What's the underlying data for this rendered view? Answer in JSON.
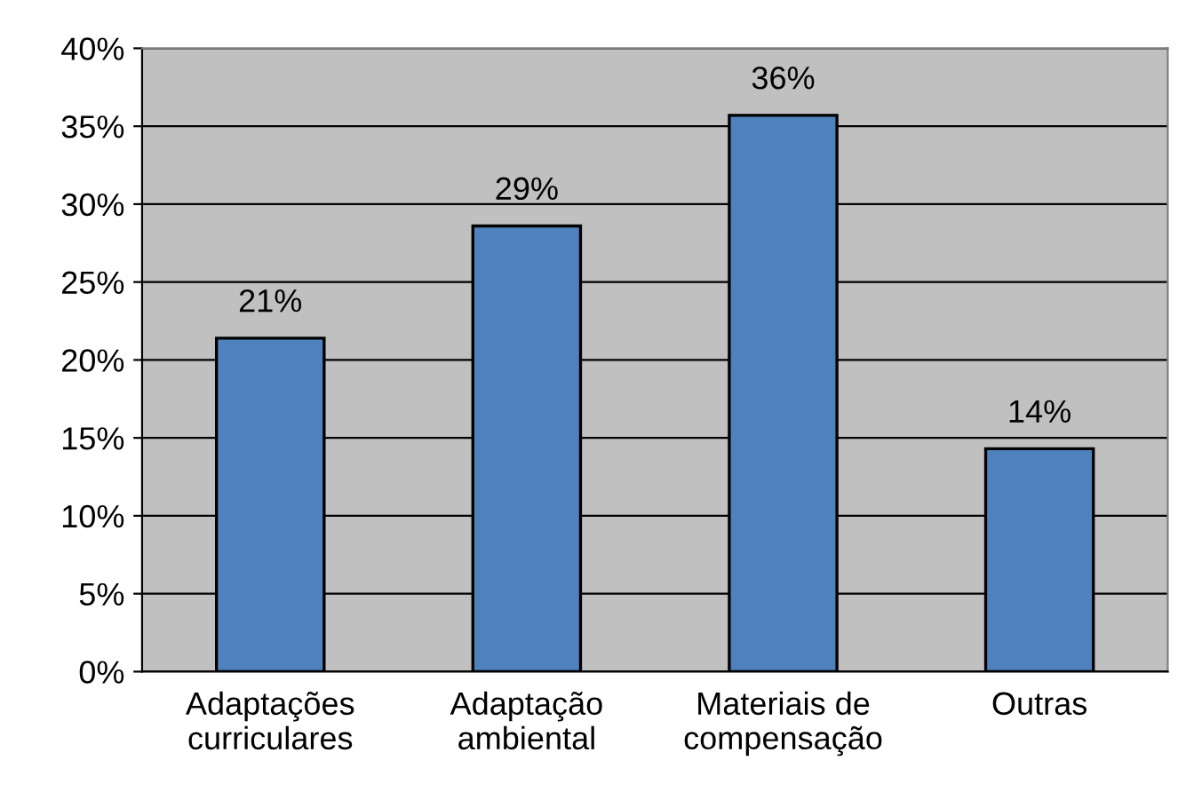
{
  "chart_data": {
    "type": "bar",
    "categories": [
      "Adaptações\ncurriculares",
      "Adaptação\nambiental",
      "Materiais de\ncompensação",
      "Outras"
    ],
    "values": [
      21.4,
      28.6,
      35.7,
      14.3
    ],
    "value_labels": [
      "21%",
      "29%",
      "36%",
      "14%"
    ],
    "color": "#4f81bd",
    "ylim": [
      0,
      40
    ],
    "yticks": [
      {
        "value": 0,
        "label": "0%"
      },
      {
        "value": 5,
        "label": "5%"
      },
      {
        "value": 10,
        "label": "10%"
      },
      {
        "value": 15,
        "label": "15%"
      },
      {
        "value": 20,
        "label": "20%"
      },
      {
        "value": 25,
        "label": "25%"
      },
      {
        "value": 30,
        "label": "30%"
      },
      {
        "value": 35,
        "label": "35%"
      },
      {
        "value": 40,
        "label": "40%"
      }
    ],
    "grid": "y",
    "legend": false
  }
}
